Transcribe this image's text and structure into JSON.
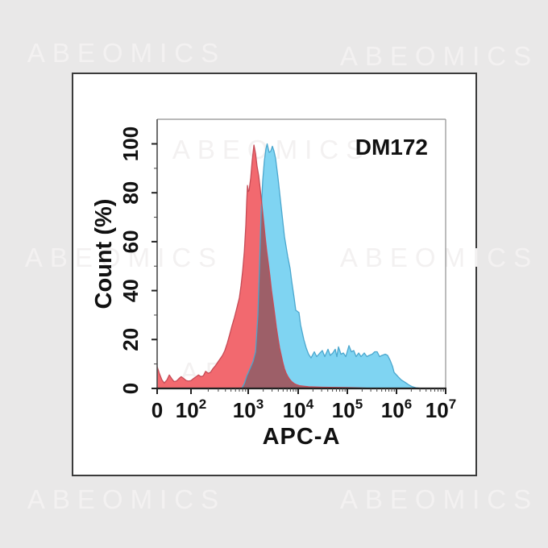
{
  "watermark": {
    "text": "ABEOMICS"
  },
  "annotation": {
    "label": "DM172"
  },
  "chart_data": {
    "type": "histogram-overlay",
    "description": "Flow cytometry histogram overlay, counts normalized to mode (%)",
    "x_axis": {
      "label": "APC-A",
      "scale": "biexponential-log",
      "ticks": [
        {
          "text": "0",
          "value": 0
        },
        {
          "base": "10",
          "sup": "2",
          "value": 100
        },
        {
          "base": "10",
          "sup": "3",
          "value": 1000
        },
        {
          "base": "10",
          "sup": "4",
          "value": 10000
        },
        {
          "base": "10",
          "sup": "5",
          "value": 100000
        },
        {
          "base": "10",
          "sup": "6",
          "value": 1000000
        },
        {
          "base": "10",
          "sup": "7",
          "value": 10000000
        }
      ]
    },
    "y_axis": {
      "label": "Count  (%)",
      "ticks": [
        0,
        20,
        40,
        60,
        80,
        100
      ],
      "range": [
        0,
        100
      ]
    },
    "series": [
      {
        "name": "red",
        "color_fill": "#F2696F",
        "color_stroke": "#C64B56",
        "points": [
          [
            0,
            8.9
          ],
          [
            7,
            6
          ],
          [
            14,
            3.5
          ],
          [
            21,
            2.2
          ],
          [
            29,
            3.5
          ],
          [
            36,
            5.5
          ],
          [
            43,
            4
          ],
          [
            50,
            2.8
          ],
          [
            57,
            3
          ],
          [
            64,
            4
          ],
          [
            71,
            4.8
          ],
          [
            79,
            4
          ],
          [
            86,
            3.2
          ],
          [
            93,
            3
          ],
          [
            100,
            3.2
          ],
          [
            110,
            4
          ],
          [
            120,
            4.6
          ],
          [
            135,
            5.5
          ],
          [
            150,
            4.8
          ],
          [
            165,
            5.2
          ],
          [
            180,
            7
          ],
          [
            200,
            6.2
          ],
          [
            220,
            6.6
          ],
          [
            240,
            8
          ],
          [
            265,
            9.2
          ],
          [
            290,
            10.5
          ],
          [
            320,
            12
          ],
          [
            355,
            13.5
          ],
          [
            390,
            15.5
          ],
          [
            430,
            18.5
          ],
          [
            475,
            22
          ],
          [
            520,
            25.5
          ],
          [
            575,
            29
          ],
          [
            635,
            33
          ],
          [
            700,
            37
          ],
          [
            750,
            42
          ],
          [
            800,
            48
          ],
          [
            855,
            56
          ],
          [
            910,
            67
          ],
          [
            940,
            76
          ],
          [
            970,
            83
          ],
          [
            1000,
            80.5
          ],
          [
            1040,
            81
          ],
          [
            1120,
            86
          ],
          [
            1200,
            93
          ],
          [
            1300,
            99.5
          ],
          [
            1400,
            96
          ],
          [
            1500,
            91
          ],
          [
            1620,
            87
          ],
          [
            1750,
            81
          ],
          [
            1880,
            75
          ],
          [
            2020,
            69
          ],
          [
            2180,
            62
          ],
          [
            2350,
            56
          ],
          [
            2530,
            51
          ],
          [
            2720,
            46
          ],
          [
            2930,
            40
          ],
          [
            3160,
            35
          ],
          [
            3400,
            30
          ],
          [
            3660,
            25
          ],
          [
            3950,
            20.5
          ],
          [
            4250,
            16.5
          ],
          [
            4580,
            13.5
          ],
          [
            4930,
            10.5
          ],
          [
            5310,
            8
          ],
          [
            5720,
            6.3
          ],
          [
            6160,
            5
          ],
          [
            6630,
            4
          ],
          [
            7400,
            2.8
          ],
          [
            8300,
            2
          ],
          [
            9280,
            1.5
          ],
          [
            10800,
            1.1
          ],
          [
            13000,
            0.9
          ],
          [
            16300,
            0.7
          ],
          [
            21300,
            0.6
          ],
          [
            31000,
            0.5
          ],
          [
            45000,
            0.45
          ],
          [
            66000,
            0.4
          ],
          [
            93000,
            0.35
          ],
          [
            140000,
            0.3
          ],
          [
            190000,
            0.2
          ],
          [
            250000,
            0.1
          ],
          [
            320000,
            0
          ]
        ]
      },
      {
        "name": "blue",
        "color_fill": "#7FD4F2",
        "color_stroke": "#4BA7CE",
        "points": [
          [
            770,
            0
          ],
          [
            855,
            2
          ],
          [
            940,
            5
          ],
          [
            1080,
            8
          ],
          [
            1250,
            11
          ],
          [
            1400,
            15
          ],
          [
            1560,
            30
          ],
          [
            1680,
            50
          ],
          [
            1810,
            72
          ],
          [
            1950,
            85
          ],
          [
            2100,
            93
          ],
          [
            2260,
            98
          ],
          [
            2390,
            100
          ],
          [
            2630,
            96.5
          ],
          [
            2830,
            97
          ],
          [
            3050,
            99
          ],
          [
            3280,
            97
          ],
          [
            3530,
            94
          ],
          [
            3950,
            86
          ],
          [
            4420,
            77
          ],
          [
            4760,
            71
          ],
          [
            5310,
            62
          ],
          [
            6160,
            54
          ],
          [
            6890,
            49
          ],
          [
            7400,
            44
          ],
          [
            8300,
            37
          ],
          [
            8960,
            32
          ],
          [
            10400,
            31
          ],
          [
            11200,
            26
          ],
          [
            13000,
            20
          ],
          [
            14600,
            16.5
          ],
          [
            16300,
            14
          ],
          [
            18300,
            12.5
          ],
          [
            21300,
            15
          ],
          [
            23800,
            13
          ],
          [
            27700,
            14.5
          ],
          [
            31000,
            15.5
          ],
          [
            34800,
            13
          ],
          [
            40400,
            16
          ],
          [
            45000,
            13.5
          ],
          [
            50600,
            14.5
          ],
          [
            56700,
            16
          ],
          [
            61200,
            13
          ],
          [
            66100,
            17
          ],
          [
            74100,
            14
          ],
          [
            83000,
            14.5
          ],
          [
            93000,
            13
          ],
          [
            108000,
            17.5
          ],
          [
            121000,
            15
          ],
          [
            135000,
            15.5
          ],
          [
            151000,
            13
          ],
          [
            170000,
            14.5
          ],
          [
            190000,
            13
          ],
          [
            221000,
            14.5
          ],
          [
            250000,
            13
          ],
          [
            277000,
            13.5
          ],
          [
            320000,
            14
          ],
          [
            361000,
            15
          ],
          [
            404000,
            15
          ],
          [
            453000,
            13
          ],
          [
            506000,
            13.5
          ],
          [
            589000,
            14
          ],
          [
            661000,
            13.5
          ],
          [
            741000,
            11.5
          ],
          [
            830000,
            9
          ],
          [
            894000,
            6.6
          ],
          [
            1080000,
            4.8
          ],
          [
            1250000,
            3.5
          ],
          [
            1520000,
            2.4
          ],
          [
            1760000,
            1.5
          ],
          [
            2050000,
            0.8
          ],
          [
            2470000,
            0.3
          ],
          [
            2990000,
            0.1
          ],
          [
            3610000,
            0
          ]
        ]
      }
    ],
    "overlap": {
      "color_fill": "#9D5F68"
    }
  }
}
